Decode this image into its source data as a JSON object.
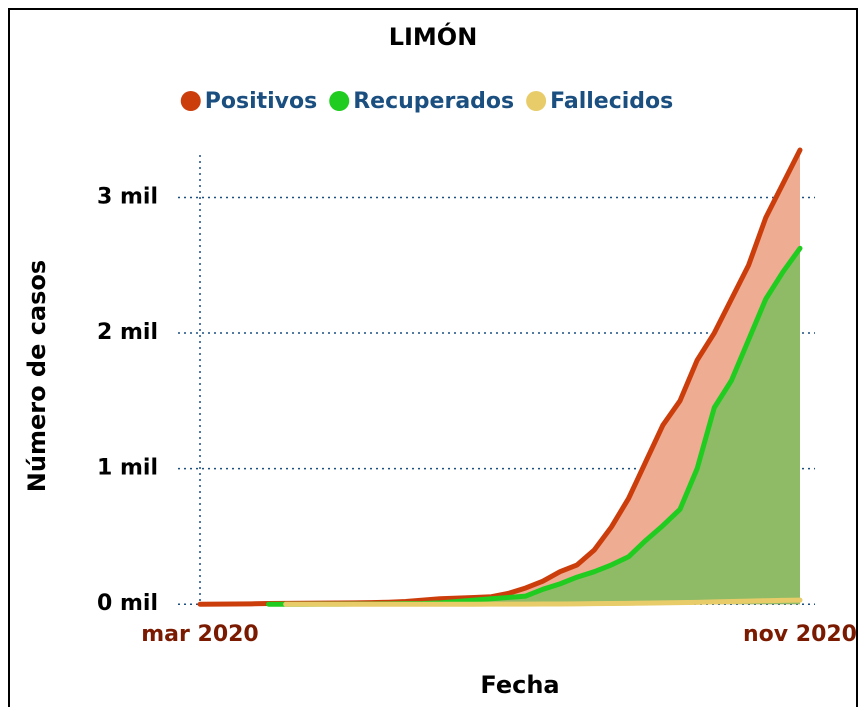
{
  "chart_data": {
    "type": "area",
    "title": "LIMÓN",
    "xlabel": "Fecha",
    "ylabel": "Número de casos",
    "categories": [
      "mar 2020",
      null,
      null,
      null,
      null,
      null,
      null,
      null,
      null,
      null,
      null,
      null,
      null,
      null,
      null,
      null,
      null,
      null,
      null,
      null,
      null,
      null,
      null,
      null,
      null,
      null,
      null,
      null,
      null,
      null,
      null,
      null,
      null,
      null,
      null,
      "nov 2020"
    ],
    "series": [
      {
        "name": "Positivos",
        "color": "#cc3d0c",
        "fill": "#eeac93",
        "values": [
          0,
          1,
          2,
          3,
          5,
          6,
          7,
          8,
          9,
          10,
          12,
          15,
          20,
          30,
          40,
          45,
          50,
          55,
          80,
          120,
          170,
          240,
          290,
          400,
          570,
          780,
          1050,
          1320,
          1500,
          1800,
          2000,
          2250,
          2500,
          2850,
          3100,
          3350
        ]
      },
      {
        "name": "Recuperados",
        "color": "#1fcc1f",
        "fill": "#8fbb66",
        "values": [
          null,
          null,
          null,
          null,
          0,
          0,
          0,
          1,
          1,
          2,
          2,
          3,
          4,
          5,
          10,
          20,
          30,
          40,
          50,
          60,
          110,
          150,
          200,
          240,
          290,
          350,
          470,
          580,
          700,
          1000,
          1450,
          1650,
          1950,
          2250,
          2450,
          2625
        ]
      },
      {
        "name": "Fallecidos",
        "color": "#e8cc6a",
        "values": [
          null,
          null,
          null,
          null,
          null,
          0,
          0,
          0,
          0,
          0,
          0,
          0,
          0,
          0,
          0,
          0,
          0,
          1,
          1,
          1,
          2,
          2,
          3,
          4,
          5,
          6,
          8,
          10,
          12,
          14,
          17,
          20,
          23,
          26,
          28,
          30
        ]
      }
    ],
    "ylim": [
      -50,
      3350
    ],
    "yticks": [
      {
        "value": 0,
        "label": "0 mil"
      },
      {
        "value": 1000,
        "label": "1 mil"
      },
      {
        "value": 2000,
        "label": "2 mil"
      },
      {
        "value": 3000,
        "label": "3 mil"
      }
    ],
    "grid": true,
    "legend": "top"
  }
}
